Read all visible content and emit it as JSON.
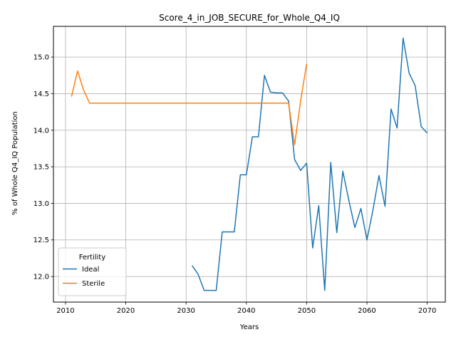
{
  "chart_data": {
    "type": "line",
    "title": "Score_4_in_JOB_SECURE_for_Whole_Q4_IQ",
    "xlabel": "Years",
    "ylabel": "% of Whole Q4_IQ Population",
    "xlim": [
      2008,
      2073
    ],
    "ylim": [
      11.65,
      15.42
    ],
    "x_ticks": [
      2010,
      2020,
      2030,
      2040,
      2050,
      2060,
      2070
    ],
    "y_ticks": [
      12.0,
      12.5,
      13.0,
      13.5,
      14.0,
      14.5,
      15.0
    ],
    "grid": true,
    "legend": {
      "title": "Fertility",
      "placement": "lower-left"
    },
    "series": [
      {
        "name": "Ideal",
        "color": "#1f77b4",
        "x": [
          2031,
          2032,
          2033,
          2034,
          2035,
          2036,
          2037,
          2038,
          2039,
          2040,
          2041,
          2042,
          2043,
          2044,
          2045,
          2046,
          2047,
          2048,
          2049,
          2050,
          2051,
          2052,
          2053,
          2054,
          2055,
          2056,
          2057,
          2058,
          2059,
          2060,
          2061,
          2062,
          2063,
          2064,
          2065,
          2066,
          2067,
          2068,
          2069,
          2070
        ],
        "values": [
          12.15,
          12.03,
          11.81,
          11.81,
          11.81,
          12.61,
          12.61,
          12.61,
          13.39,
          13.39,
          13.91,
          13.91,
          14.75,
          14.52,
          14.51,
          14.51,
          14.4,
          13.6,
          13.45,
          13.55,
          12.39,
          12.97,
          11.81,
          13.56,
          12.6,
          13.44,
          13.04,
          12.67,
          12.93,
          12.5,
          12.91,
          13.38,
          12.96,
          14.29,
          14.03,
          15.26,
          14.78,
          14.61,
          14.05,
          13.96
        ]
      },
      {
        "name": "Sterile",
        "color": "#ff7f0e",
        "x": [
          2011,
          2012,
          2013,
          2014,
          2015,
          2016,
          2017,
          2018,
          2019,
          2020,
          2021,
          2022,
          2023,
          2024,
          2025,
          2026,
          2027,
          2028,
          2029,
          2030,
          2031,
          2032,
          2033,
          2034,
          2035,
          2036,
          2037,
          2038,
          2039,
          2040,
          2041,
          2042,
          2043,
          2044,
          2045,
          2046,
          2047,
          2048,
          2049,
          2050
        ],
        "values": [
          14.46,
          14.81,
          14.55,
          14.37,
          14.37,
          14.37,
          14.37,
          14.37,
          14.37,
          14.37,
          14.37,
          14.37,
          14.37,
          14.37,
          14.37,
          14.37,
          14.37,
          14.37,
          14.37,
          14.37,
          14.37,
          14.37,
          14.37,
          14.37,
          14.37,
          14.37,
          14.37,
          14.37,
          14.37,
          14.37,
          14.37,
          14.37,
          14.37,
          14.37,
          14.37,
          14.37,
          14.37,
          13.8,
          14.4,
          14.91
        ]
      }
    ]
  }
}
